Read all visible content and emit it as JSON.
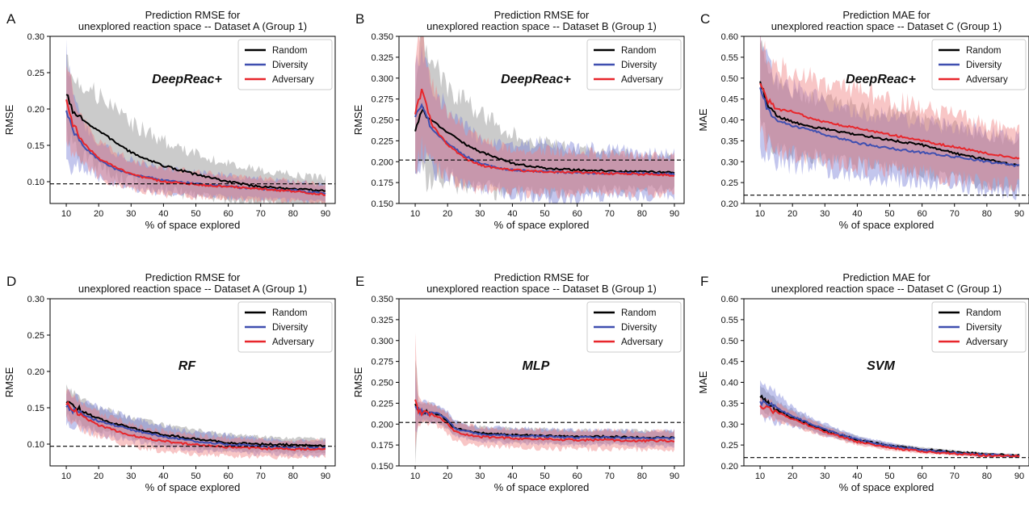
{
  "colors": {
    "Random": "#000000",
    "Diversity": "#3f4fb0",
    "Adversary": "#e8262b",
    "Random_band": "#8c8c8c",
    "Diversity_band": "#7b80d6",
    "Adversary_band": "#f08080"
  },
  "chart_data": [
    {
      "panel": "A",
      "type": "line",
      "title_lines": [
        "Prediction RMSE for",
        "unexplored reaction space -- Dataset A (Group 1)"
      ],
      "xlabel": "% of space explored",
      "ylabel": "RMSE",
      "annotation": "DeepReac+",
      "xlim": [
        5,
        93
      ],
      "ylim": [
        0.07,
        0.3
      ],
      "xticks": [
        10,
        20,
        30,
        40,
        50,
        60,
        70,
        80,
        90
      ],
      "yticks": [
        0.1,
        0.15,
        0.2,
        0.25,
        0.3
      ],
      "ytick_labels": [
        "0.10",
        "0.15",
        "0.20",
        "0.25",
        "0.30"
      ],
      "baseline": 0.097,
      "legend": [
        "Random",
        "Diversity",
        "Adversary"
      ],
      "series": [
        {
          "name": "Random",
          "x": [
            10,
            12,
            15,
            20,
            25,
            30,
            40,
            50,
            60,
            70,
            80,
            90
          ],
          "values": [
            0.222,
            0.195,
            0.185,
            0.17,
            0.155,
            0.14,
            0.122,
            0.11,
            0.1,
            0.093,
            0.09,
            0.087
          ],
          "band": [
            0.05,
            0.045,
            0.05,
            0.05,
            0.045,
            0.04,
            0.035,
            0.028,
            0.025,
            0.022,
            0.02,
            0.018
          ]
        },
        {
          "name": "Diversity",
          "x": [
            10,
            12,
            15,
            20,
            25,
            30,
            40,
            50,
            60,
            70,
            80,
            90
          ],
          "values": [
            0.2,
            0.17,
            0.15,
            0.13,
            0.118,
            0.11,
            0.102,
            0.097,
            0.093,
            0.09,
            0.088,
            0.083
          ],
          "band": [
            0.08,
            0.045,
            0.03,
            0.025,
            0.022,
            0.02,
            0.018,
            0.016,
            0.015,
            0.014,
            0.013,
            0.012
          ]
        },
        {
          "name": "Adversary",
          "x": [
            10,
            12,
            15,
            20,
            25,
            30,
            40,
            50,
            60,
            70,
            80,
            90
          ],
          "values": [
            0.215,
            0.18,
            0.155,
            0.132,
            0.12,
            0.11,
            0.1,
            0.096,
            0.093,
            0.09,
            0.087,
            0.082
          ],
          "band": [
            0.06,
            0.04,
            0.03,
            0.025,
            0.022,
            0.02,
            0.018,
            0.017,
            0.016,
            0.015,
            0.014,
            0.013
          ]
        }
      ]
    },
    {
      "panel": "B",
      "type": "line",
      "title_lines": [
        "Prediction RMSE for",
        "unexplored reaction space -- Dataset B (Group 1)"
      ],
      "xlabel": "% of space explored",
      "ylabel": "RMSE",
      "annotation": "DeepReac+",
      "xlim": [
        5,
        93
      ],
      "ylim": [
        0.15,
        0.35
      ],
      "xticks": [
        10,
        20,
        30,
        40,
        50,
        60,
        70,
        80,
        90
      ],
      "yticks": [
        0.15,
        0.175,
        0.2,
        0.225,
        0.25,
        0.275,
        0.3,
        0.325,
        0.35
      ],
      "ytick_labels": [
        "0.150",
        "0.175",
        "0.200",
        "0.225",
        "0.250",
        "0.275",
        "0.300",
        "0.325",
        "0.350"
      ],
      "baseline": 0.202,
      "legend": [
        "Random",
        "Diversity",
        "Adversary"
      ],
      "series": [
        {
          "name": "Random",
          "x": [
            10,
            12,
            15,
            20,
            25,
            30,
            35,
            40,
            50,
            60,
            70,
            80,
            90
          ],
          "values": [
            0.238,
            0.262,
            0.25,
            0.235,
            0.222,
            0.212,
            0.205,
            0.198,
            0.192,
            0.19,
            0.189,
            0.188,
            0.187
          ],
          "band": [
            0.06,
            0.08,
            0.07,
            0.055,
            0.05,
            0.045,
            0.04,
            0.035,
            0.03,
            0.025,
            0.022,
            0.02,
            0.018
          ]
        },
        {
          "name": "Diversity",
          "x": [
            10,
            12,
            15,
            20,
            25,
            30,
            35,
            40,
            50,
            60,
            70,
            80,
            90
          ],
          "values": [
            0.255,
            0.268,
            0.24,
            0.222,
            0.208,
            0.198,
            0.193,
            0.19,
            0.188,
            0.187,
            0.186,
            0.186,
            0.185
          ],
          "band": [
            0.07,
            0.06,
            0.05,
            0.04,
            0.035,
            0.03,
            0.028,
            0.03,
            0.035,
            0.03,
            0.028,
            0.026,
            0.025
          ]
        },
        {
          "name": "Adversary",
          "x": [
            10,
            12,
            15,
            20,
            25,
            30,
            35,
            40,
            50,
            60,
            70,
            80,
            90
          ],
          "values": [
            0.258,
            0.285,
            0.245,
            0.22,
            0.205,
            0.196,
            0.192,
            0.19,
            0.188,
            0.187,
            0.186,
            0.185,
            0.184
          ],
          "band": [
            0.06,
            0.07,
            0.05,
            0.04,
            0.035,
            0.03,
            0.028,
            0.026,
            0.025,
            0.024,
            0.023,
            0.022,
            0.022
          ]
        }
      ]
    },
    {
      "panel": "C",
      "type": "line",
      "title_lines": [
        "Prediction MAE for",
        "unexplored reaction space -- Dataset C (Group 1)"
      ],
      "xlabel": "% of space explored",
      "ylabel": "MAE",
      "annotation": "DeepReac+",
      "xlim": [
        5,
        93
      ],
      "ylim": [
        0.2,
        0.6
      ],
      "xticks": [
        10,
        20,
        30,
        40,
        50,
        60,
        70,
        80,
        90
      ],
      "yticks": [
        0.2,
        0.25,
        0.3,
        0.35,
        0.4,
        0.45,
        0.5,
        0.55,
        0.6
      ],
      "ytick_labels": [
        "0.20",
        "0.25",
        "0.30",
        "0.35",
        "0.40",
        "0.45",
        "0.50",
        "0.55",
        "0.60"
      ],
      "baseline": 0.22,
      "legend": [
        "Random",
        "Diversity",
        "Adversary"
      ],
      "series": [
        {
          "name": "Random",
          "x": [
            10,
            12,
            15,
            20,
            25,
            30,
            40,
            50,
            60,
            70,
            80,
            90
          ],
          "values": [
            0.495,
            0.44,
            0.41,
            0.395,
            0.385,
            0.378,
            0.365,
            0.352,
            0.34,
            0.32,
            0.305,
            0.29
          ],
          "band": [
            0.09,
            0.085,
            0.08,
            0.075,
            0.072,
            0.07,
            0.068,
            0.066,
            0.064,
            0.062,
            0.06,
            0.058
          ]
        },
        {
          "name": "Diversity",
          "x": [
            10,
            12,
            15,
            20,
            25,
            30,
            40,
            50,
            60,
            70,
            80,
            90
          ],
          "values": [
            0.48,
            0.43,
            0.4,
            0.385,
            0.378,
            0.365,
            0.345,
            0.332,
            0.322,
            0.312,
            0.3,
            0.29
          ],
          "band": [
            0.13,
            0.11,
            0.095,
            0.09,
            0.085,
            0.08,
            0.078,
            0.075,
            0.072,
            0.07,
            0.068,
            0.066
          ]
        },
        {
          "name": "Adversary",
          "x": [
            10,
            12,
            15,
            20,
            25,
            30,
            40,
            50,
            60,
            70,
            80,
            90
          ],
          "values": [
            0.49,
            0.45,
            0.425,
            0.42,
            0.405,
            0.395,
            0.38,
            0.365,
            0.35,
            0.335,
            0.32,
            0.308
          ],
          "band": [
            0.1,
            0.11,
            0.105,
            0.1,
            0.095,
            0.095,
            0.09,
            0.085,
            0.08,
            0.075,
            0.07,
            0.065
          ]
        }
      ]
    },
    {
      "panel": "D",
      "type": "line",
      "title_lines": [
        "Prediction RMSE for",
        "unexplored reaction space -- Dataset A (Group 1)"
      ],
      "xlabel": "% of space explored",
      "ylabel": "RMSE",
      "annotation": "RF",
      "xlim": [
        5,
        93
      ],
      "ylim": [
        0.07,
        0.3
      ],
      "xticks": [
        10,
        20,
        30,
        40,
        50,
        60,
        70,
        80,
        90
      ],
      "yticks": [
        0.1,
        0.15,
        0.2,
        0.25,
        0.3
      ],
      "ytick_labels": [
        "0.10",
        "0.15",
        "0.20",
        "0.25",
        "0.30"
      ],
      "baseline": 0.097,
      "legend": [
        "Random",
        "Diversity",
        "Adversary"
      ],
      "series": [
        {
          "name": "Random",
          "x": [
            10,
            15,
            20,
            30,
            40,
            50,
            60,
            70,
            80,
            90
          ],
          "values": [
            0.158,
            0.145,
            0.135,
            0.122,
            0.113,
            0.107,
            0.102,
            0.1,
            0.099,
            0.097
          ],
          "band": [
            0.02,
            0.018,
            0.016,
            0.014,
            0.013,
            0.012,
            0.011,
            0.01,
            0.01,
            0.009
          ]
        },
        {
          "name": "Diversity",
          "x": [
            10,
            15,
            20,
            30,
            40,
            50,
            60,
            70,
            80,
            90
          ],
          "values": [
            0.152,
            0.14,
            0.132,
            0.12,
            0.11,
            0.104,
            0.1,
            0.097,
            0.095,
            0.094
          ],
          "band": [
            0.022,
            0.02,
            0.018,
            0.016,
            0.014,
            0.013,
            0.012,
            0.011,
            0.01,
            0.01
          ]
        },
        {
          "name": "Adversary",
          "x": [
            10,
            15,
            20,
            30,
            40,
            50,
            60,
            70,
            80,
            90
          ],
          "values": [
            0.155,
            0.138,
            0.126,
            0.112,
            0.104,
            0.099,
            0.096,
            0.094,
            0.093,
            0.094
          ],
          "band": [
            0.02,
            0.018,
            0.016,
            0.015,
            0.014,
            0.013,
            0.012,
            0.012,
            0.011,
            0.011
          ]
        }
      ]
    },
    {
      "panel": "E",
      "type": "line",
      "title_lines": [
        "Prediction RMSE for",
        "unexplored reaction space -- Dataset B (Group 1)"
      ],
      "xlabel": "% of space explored",
      "ylabel": "RMSE",
      "annotation": "MLP",
      "xlim": [
        5,
        93
      ],
      "ylim": [
        0.15,
        0.35
      ],
      "xticks": [
        10,
        20,
        30,
        40,
        50,
        60,
        70,
        80,
        90
      ],
      "yticks": [
        0.15,
        0.175,
        0.2,
        0.225,
        0.25,
        0.275,
        0.3,
        0.325,
        0.35
      ],
      "ytick_labels": [
        "0.150",
        "0.175",
        "0.200",
        "0.225",
        "0.250",
        "0.275",
        "0.300",
        "0.325",
        "0.350"
      ],
      "baseline": 0.202,
      "legend": [
        "Random",
        "Diversity",
        "Adversary"
      ],
      "series": [
        {
          "name": "Random",
          "x": [
            10,
            11,
            15,
            18,
            20,
            22,
            25,
            30,
            40,
            50,
            60,
            70,
            80,
            90
          ],
          "values": [
            0.225,
            0.215,
            0.213,
            0.21,
            0.203,
            0.196,
            0.192,
            0.189,
            0.187,
            0.186,
            0.185,
            0.185,
            0.184,
            0.184
          ],
          "band": [
            0.06,
            0.012,
            0.01,
            0.01,
            0.009,
            0.008,
            0.008,
            0.008,
            0.008,
            0.008,
            0.008,
            0.008,
            0.008,
            0.008
          ]
        },
        {
          "name": "Diversity",
          "x": [
            10,
            11,
            15,
            18,
            20,
            22,
            25,
            30,
            40,
            50,
            60,
            70,
            80,
            90
          ],
          "values": [
            0.222,
            0.216,
            0.214,
            0.211,
            0.204,
            0.196,
            0.192,
            0.188,
            0.186,
            0.185,
            0.184,
            0.184,
            0.183,
            0.183
          ],
          "band": [
            0.04,
            0.012,
            0.011,
            0.011,
            0.01,
            0.009,
            0.009,
            0.009,
            0.009,
            0.009,
            0.009,
            0.009,
            0.009,
            0.009
          ]
        },
        {
          "name": "Adversary",
          "x": [
            10,
            11,
            15,
            18,
            20,
            22,
            25,
            30,
            40,
            50,
            60,
            70,
            80,
            90
          ],
          "values": [
            0.23,
            0.215,
            0.212,
            0.207,
            0.2,
            0.192,
            0.188,
            0.185,
            0.183,
            0.182,
            0.181,
            0.181,
            0.18,
            0.18
          ],
          "band": [
            0.07,
            0.015,
            0.012,
            0.012,
            0.012,
            0.011,
            0.011,
            0.011,
            0.011,
            0.011,
            0.011,
            0.011,
            0.011,
            0.011
          ]
        }
      ]
    },
    {
      "panel": "F",
      "type": "line",
      "title_lines": [
        "Prediction MAE for",
        "unexplored reaction space -- Dataset C (Group 1)"
      ],
      "xlabel": "% of space explored",
      "ylabel": "MAE",
      "annotation": "SVM",
      "xlim": [
        5,
        93
      ],
      "ylim": [
        0.2,
        0.6
      ],
      "xticks": [
        10,
        20,
        30,
        40,
        50,
        60,
        70,
        80,
        90
      ],
      "yticks": [
        0.2,
        0.25,
        0.3,
        0.35,
        0.4,
        0.45,
        0.5,
        0.55,
        0.6
      ],
      "ytick_labels": [
        "0.20",
        "0.25",
        "0.30",
        "0.35",
        "0.40",
        "0.45",
        "0.50",
        "0.55",
        "0.60"
      ],
      "baseline": 0.22,
      "legend": [
        "Random",
        "Diversity",
        "Adversary"
      ],
      "series": [
        {
          "name": "Random",
          "x": [
            10,
            15,
            20,
            30,
            40,
            50,
            60,
            70,
            80,
            90
          ],
          "values": [
            0.365,
            0.335,
            0.315,
            0.285,
            0.262,
            0.248,
            0.24,
            0.233,
            0.228,
            0.225
          ],
          "band": [
            0.025,
            0.022,
            0.018,
            0.012,
            0.008,
            0.006,
            0.005,
            0.004,
            0.004,
            0.003
          ]
        },
        {
          "name": "Diversity",
          "x": [
            10,
            15,
            20,
            30,
            40,
            50,
            60,
            70,
            80,
            90
          ],
          "values": [
            0.355,
            0.34,
            0.318,
            0.287,
            0.263,
            0.248,
            0.238,
            0.231,
            0.226,
            0.224
          ],
          "band": [
            0.04,
            0.035,
            0.022,
            0.014,
            0.009,
            0.007,
            0.005,
            0.004,
            0.004,
            0.003
          ]
        },
        {
          "name": "Adversary",
          "x": [
            10,
            15,
            20,
            30,
            40,
            50,
            60,
            70,
            80,
            90
          ],
          "values": [
            0.345,
            0.33,
            0.312,
            0.282,
            0.258,
            0.243,
            0.235,
            0.229,
            0.225,
            0.223
          ],
          "band": [
            0.022,
            0.02,
            0.016,
            0.012,
            0.008,
            0.006,
            0.005,
            0.004,
            0.004,
            0.003
          ]
        }
      ]
    }
  ]
}
